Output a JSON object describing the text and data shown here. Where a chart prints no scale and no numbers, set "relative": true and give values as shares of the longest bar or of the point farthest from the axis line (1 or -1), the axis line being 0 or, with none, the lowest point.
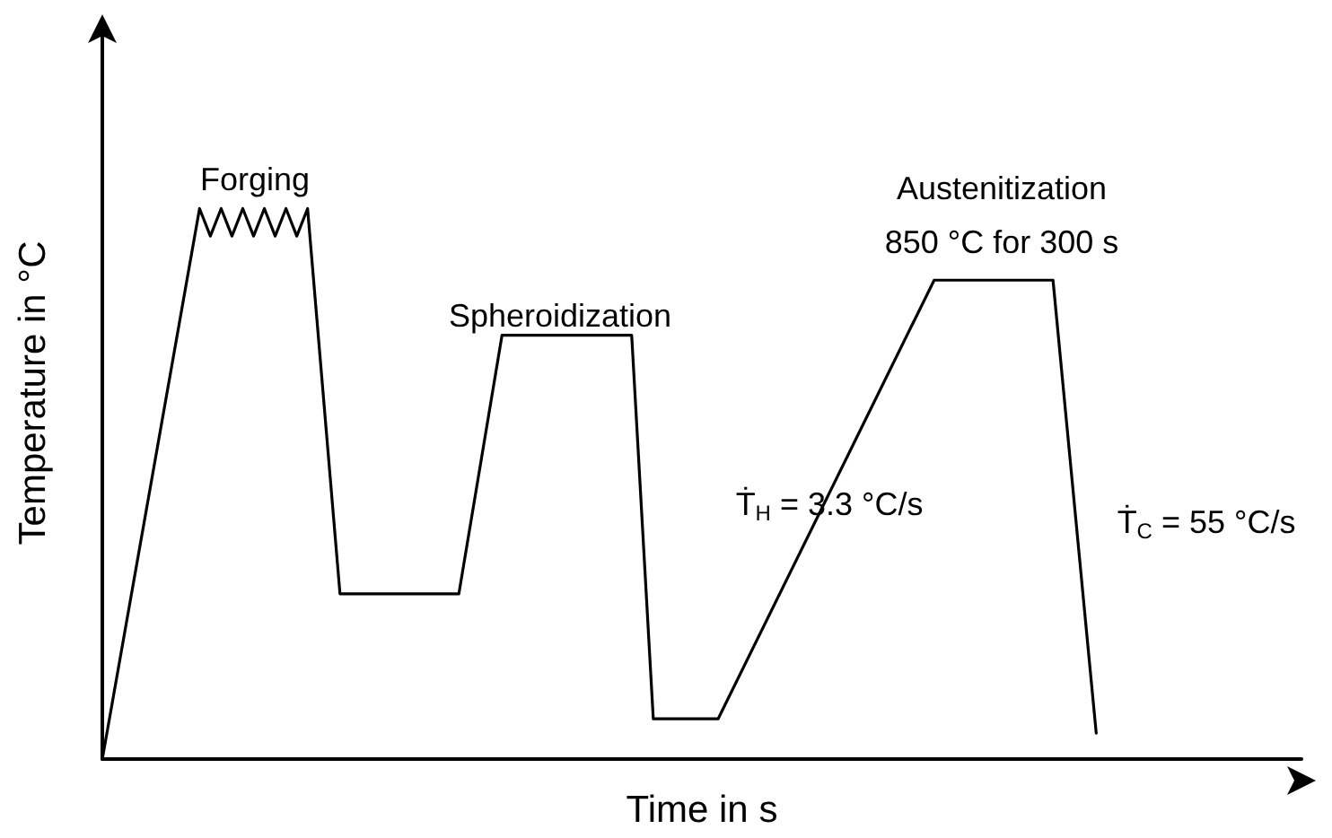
{
  "chart_data": {
    "type": "line",
    "relative": true,
    "xlabel": "Time in s",
    "ylabel": "Temperature in °C",
    "marker": "none",
    "line_style": "solid",
    "categories": [
      null,
      null,
      null,
      null,
      null,
      null,
      null,
      null,
      null,
      null,
      null,
      null,
      null,
      null,
      null,
      null,
      null,
      null,
      null,
      null,
      null,
      null,
      null,
      null,
      null,
      null,
      null,
      null,
      null,
      null,
      null,
      null,
      null,
      null,
      null,
      null,
      null,
      null,
      null,
      null,
      null,
      null,
      null,
      null,
      null,
      null,
      null,
      null,
      null,
      null,
      null,
      null,
      null,
      null,
      null,
      null,
      null,
      null,
      null,
      null,
      null,
      null,
      null,
      null,
      null,
      null,
      null,
      null,
      null,
      null,
      null,
      null,
      null,
      null,
      null,
      null,
      null,
      null,
      null,
      null,
      null,
      null,
      null,
      null,
      null,
      null,
      null,
      null,
      null,
      null,
      null,
      null,
      null,
      null,
      null,
      null,
      null,
      null,
      null,
      null,
      null,
      null,
      null,
      null,
      null,
      null,
      null,
      null,
      null,
      null,
      null,
      null
    ],
    "series": [
      {
        "color": "#000000",
        "values": [
          0,
          null,
          null,
          null,
          null,
          null,
          null,
          null,
          null,
          1,
          0.95,
          1,
          0.95,
          1,
          0.95,
          1,
          0.95,
          1,
          0.95,
          1,
          null,
          null,
          0.3,
          null,
          null,
          null,
          null,
          null,
          null,
          null,
          null,
          null,
          null,
          0.3,
          null,
          null,
          null,
          0.77,
          null,
          null,
          null,
          null,
          null,
          null,
          null,
          null,
          null,
          null,
          null,
          0.77,
          null,
          0.073,
          null,
          null,
          null,
          null,
          null,
          0.073,
          null,
          null,
          null,
          null,
          null,
          null,
          null,
          null,
          null,
          null,
          null,
          null,
          null,
          null,
          null,
          null,
          null,
          null,
          null,
          0.87,
          null,
          null,
          null,
          null,
          null,
          null,
          null,
          null,
          null,
          null,
          0.87,
          null,
          null,
          null,
          0.047,
          null,
          null,
          null,
          null,
          null,
          null,
          null,
          null,
          null,
          null,
          null,
          null,
          null,
          null,
          null,
          null,
          null,
          null,
          null
        ]
      }
    ],
    "annotations": [
      "Forging",
      "Spheroidization",
      "Austenitization",
      "850 °C for 300 s",
      "Ṫ$_{H}$ = 3.3 °C/s",
      "Ṫ$_{C}$ = 55 °C/s"
    ]
  }
}
